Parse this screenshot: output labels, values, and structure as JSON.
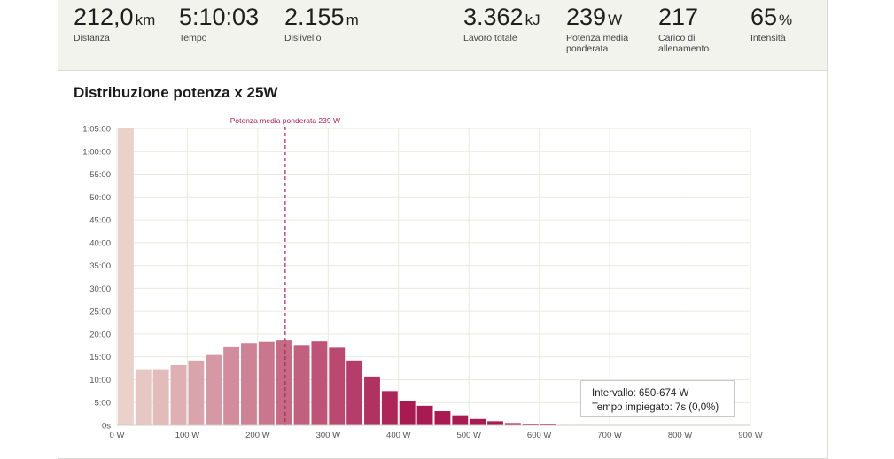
{
  "stats": [
    {
      "value": "212,0",
      "unit": "km",
      "label": "Distanza"
    },
    {
      "value": "5:10:03",
      "unit": "",
      "label": "Tempo"
    },
    {
      "value": "2.155",
      "unit": "m",
      "label": "Dislivello"
    },
    {
      "value": "3.362",
      "unit": "kJ",
      "label": "Lavoro totale"
    },
    {
      "value": "239",
      "unit": "W",
      "label": "Potenza media ponderata"
    },
    {
      "value": "217",
      "unit": "",
      "label": "Carico di allenamento"
    },
    {
      "value": "65",
      "unit": "%",
      "label": "Intensità"
    }
  ],
  "section_title": "Distribuzione potenza x 25W",
  "tooltip": {
    "line1": "Intervallo: 650-674 W",
    "line2": "Tempo impiegato: 7s (0,0%)"
  },
  "chart_data": {
    "type": "bar",
    "title": "Distribuzione potenza x 25W",
    "x_unit": "W",
    "bin_width_w": 25,
    "bins_start_w": [
      0,
      25,
      50,
      75,
      100,
      125,
      150,
      175,
      200,
      225,
      250,
      275,
      300,
      325,
      350,
      375,
      400,
      425,
      450,
      475,
      500,
      525,
      550,
      575,
      600,
      625,
      650,
      675
    ],
    "values_minutes": [
      65.0,
      12.3,
      12.3,
      13.2,
      14.2,
      15.4,
      17.1,
      18.0,
      18.3,
      18.6,
      17.6,
      18.4,
      17.0,
      14.2,
      10.7,
      7.5,
      5.4,
      4.3,
      3.1,
      2.2,
      1.4,
      0.9,
      0.5,
      0.3,
      0.2,
      0.1,
      0.1,
      0.0
    ],
    "xlim": [
      0,
      900
    ],
    "ylim_minutes": [
      0,
      65
    ],
    "x_ticks": [
      "0 W",
      "100 W",
      "200 W",
      "300 W",
      "400 W",
      "500 W",
      "600 W",
      "700 W",
      "800 W",
      "900 W"
    ],
    "y_ticks": [
      "0s",
      "5:00",
      "10:00",
      "15:00",
      "20:00",
      "25:00",
      "30:00",
      "35:00",
      "40:00",
      "45:00",
      "50:00",
      "55:00",
      "1:00:00",
      "1:05:00"
    ],
    "reference_line": {
      "x": 239,
      "label": "Potenza media ponderata 239 W"
    },
    "grid": true,
    "colors": {
      "low": "#ead2ca",
      "high": "#a81b52",
      "reference": "#a8245a"
    }
  }
}
